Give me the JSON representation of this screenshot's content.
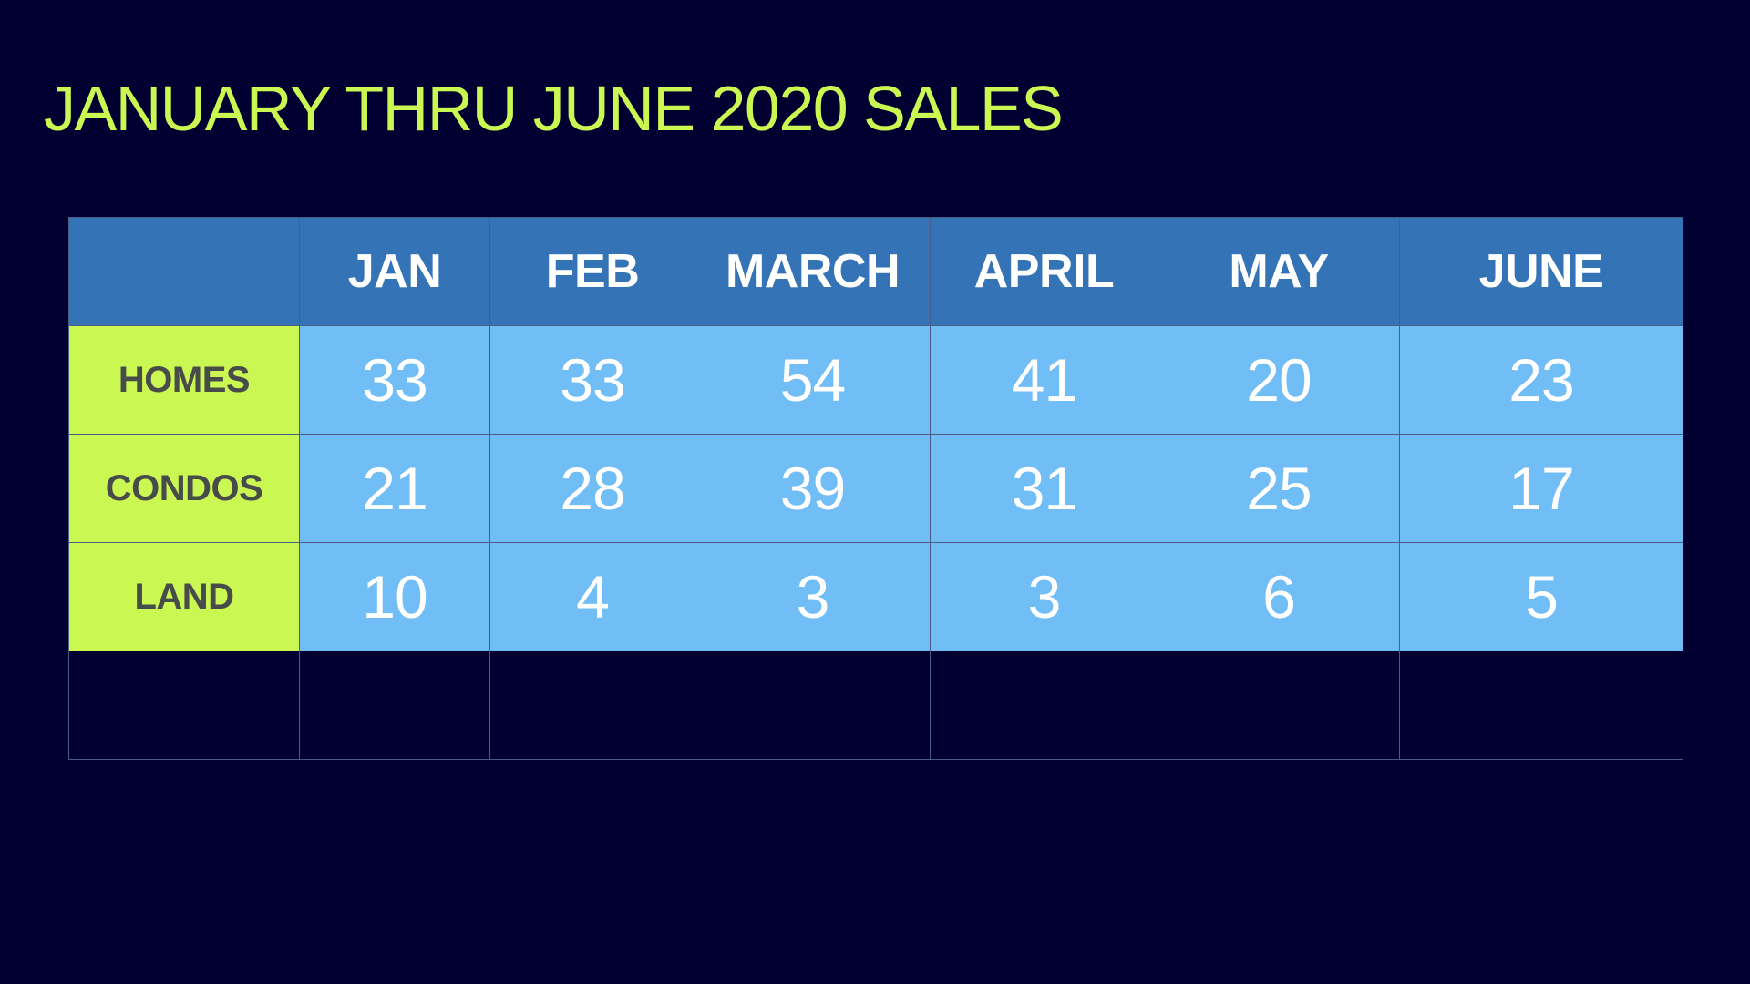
{
  "title": "JANUARY THRU JUNE 2020 SALES",
  "colors": {
    "background": "#010030",
    "title": "#cbf752",
    "header_bg": "#3473b5",
    "row_label_bg": "#cbf752",
    "cell_bg": "#71bdf6"
  },
  "chart_data": {
    "type": "table",
    "title": "JANUARY THRU JUNE 2020 SALES",
    "columns": [
      "JAN",
      "FEB",
      "MARCH",
      "APRIL",
      "MAY",
      "JUNE"
    ],
    "rows": [
      {
        "label": "HOMES",
        "values": [
          "33",
          "33",
          "54",
          "41",
          "20",
          "23"
        ]
      },
      {
        "label": "CONDOS",
        "values": [
          "21",
          "28",
          "39",
          "31",
          "25",
          "17"
        ]
      },
      {
        "label": "LAND",
        "values": [
          "10",
          "4",
          "3",
          "3",
          "6",
          "5"
        ]
      }
    ]
  }
}
